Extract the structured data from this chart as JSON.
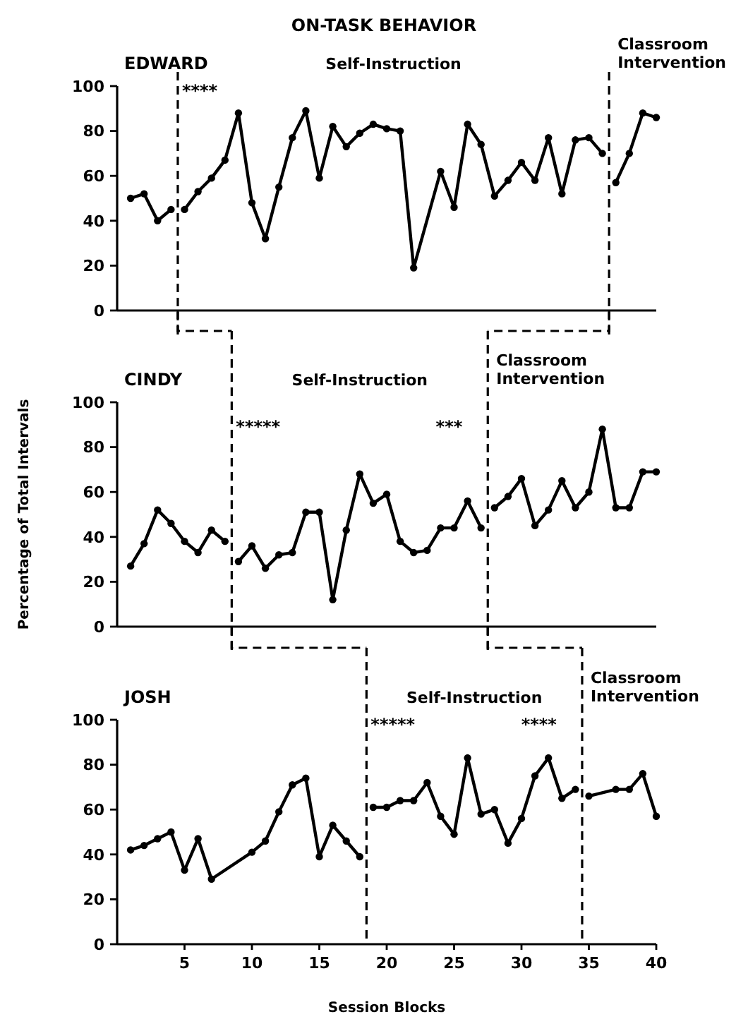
{
  "chart_data": [
    {
      "type": "line",
      "title": "ON-TASK BEHAVIOR",
      "subtitle": "EDWARD",
      "xlim": [
        0,
        40
      ],
      "ylim": [
        0,
        100
      ],
      "yticks": [
        0,
        20,
        40,
        60,
        80,
        100
      ],
      "tick_labels": "y",
      "marker": "circle",
      "line_style": "solid",
      "series": [
        {
          "color": "#000000",
          "x": [
            1,
            2,
            3,
            4
          ],
          "values": [
            50,
            52,
            40,
            45
          ]
        },
        {
          "color": "#000000",
          "x": [
            5,
            6,
            7,
            8,
            9,
            10,
            11,
            12,
            13,
            14,
            15,
            16,
            17,
            18,
            19,
            20,
            21,
            22,
            24,
            25,
            26,
            27,
            28,
            29,
            30,
            31,
            32,
            33,
            34,
            35,
            36
          ],
          "values": [
            45,
            53,
            59,
            67,
            88,
            48,
            32,
            55,
            77,
            89,
            59,
            82,
            73,
            79,
            83,
            81,
            80,
            19,
            62,
            46,
            83,
            74,
            51,
            58,
            66,
            58,
            77,
            52,
            76,
            77,
            70
          ]
        },
        {
          "color": "#000000",
          "x": [
            37,
            38,
            39,
            40
          ],
          "values": [
            57,
            70,
            88,
            86
          ]
        }
      ],
      "ref_lines": [
        {
          "axis": "x",
          "value": 4.5,
          "line_style": "dashed"
        },
        {
          "axis": "x",
          "value": 36.5,
          "label": "Classroom Intervention",
          "line_style": "dashed"
        }
      ],
      "annotations": [
        "Self-Instruction",
        "****"
      ]
    },
    {
      "type": "line",
      "subtitle": "CINDY",
      "ylabel": "Percentage of Total Intervals",
      "xlim": [
        0,
        40
      ],
      "ylim": [
        0,
        100
      ],
      "yticks": [
        0,
        20,
        40,
        60,
        80,
        100
      ],
      "tick_labels": "y",
      "marker": "circle",
      "line_style": "solid",
      "series": [
        {
          "color": "#000000",
          "x": [
            1,
            2,
            3,
            4,
            5,
            6,
            7,
            8
          ],
          "values": [
            27,
            37,
            52,
            46,
            38,
            33,
            43,
            38
          ]
        },
        {
          "color": "#000000",
          "x": [
            9,
            10,
            11,
            12,
            13,
            14,
            15,
            16,
            17,
            18,
            19,
            20,
            21,
            22,
            23,
            24,
            25,
            26,
            27
          ],
          "values": [
            29,
            36,
            26,
            32,
            33,
            51,
            51,
            12,
            43,
            68,
            55,
            59,
            38,
            33,
            34,
            44,
            44,
            56,
            44
          ]
        },
        {
          "color": "#000000",
          "x": [
            28,
            29,
            30,
            31,
            32,
            33,
            34,
            35,
            36,
            37,
            38,
            39,
            40
          ],
          "values": [
            53,
            58,
            66,
            45,
            52,
            65,
            53,
            60,
            88,
            53,
            53,
            69,
            69
          ]
        }
      ],
      "ref_lines": [
        {
          "axis": "x",
          "value": 8.5,
          "line_style": "dashed"
        },
        {
          "axis": "x",
          "value": 27.5,
          "label": "Classroom Intervention",
          "line_style": "dashed"
        }
      ],
      "annotations": [
        "Self-Instruction",
        "*****",
        "***"
      ]
    },
    {
      "type": "line",
      "subtitle": "JOSH",
      "xlabel": "Session Blocks",
      "xlim": [
        0,
        40
      ],
      "ylim": [
        0,
        100
      ],
      "xticks": [
        5,
        10,
        15,
        20,
        25,
        30,
        35,
        40
      ],
      "yticks": [
        0,
        20,
        40,
        60,
        80,
        100
      ],
      "marker": "circle",
      "line_style": "solid",
      "series": [
        {
          "color": "#000000",
          "x": [
            1,
            2,
            3,
            4,
            5,
            6,
            7,
            10,
            11,
            12,
            13,
            14,
            15,
            16,
            17,
            18
          ],
          "values": [
            42,
            44,
            47,
            50,
            33,
            47,
            29,
            41,
            46,
            59,
            71,
            74,
            39,
            53,
            46,
            39
          ]
        },
        {
          "color": "#000000",
          "x": [
            19,
            20,
            21,
            22,
            23,
            24,
            25,
            26,
            27,
            28,
            29,
            30,
            31,
            32,
            33,
            34
          ],
          "values": [
            61,
            61,
            64,
            64,
            72,
            57,
            49,
            83,
            58,
            60,
            45,
            56,
            75,
            83,
            65,
            69
          ]
        },
        {
          "color": "#000000",
          "x": [
            35,
            37,
            38,
            39,
            40
          ],
          "values": [
            66,
            69,
            69,
            76,
            57
          ]
        }
      ],
      "ref_lines": [
        {
          "axis": "x",
          "value": 18.5,
          "line_style": "dashed"
        },
        {
          "axis": "x",
          "value": 34.5,
          "label": "Classroom Intervention",
          "line_style": "dashed"
        }
      ],
      "annotations": [
        "Self-Instruction",
        "*****",
        "****"
      ]
    }
  ]
}
